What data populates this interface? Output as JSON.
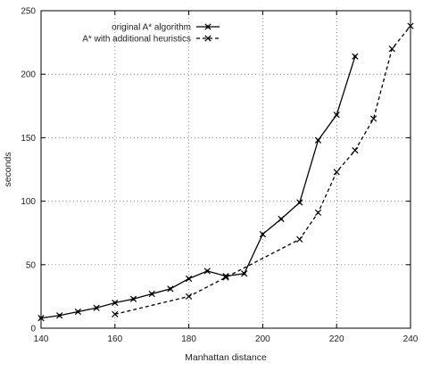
{
  "chart_data": {
    "type": "line",
    "title": "",
    "xlabel": "Manhattan distance",
    "ylabel": "seconds",
    "xlim": [
      140,
      240
    ],
    "ylim": [
      0,
      250
    ],
    "xticks": [
      140,
      160,
      180,
      200,
      220,
      240
    ],
    "yticks": [
      0,
      50,
      100,
      150,
      200,
      250
    ],
    "grid": "dotted",
    "legend_position": "top-right",
    "series": [
      {
        "name": "original A* algorithm",
        "line_style": "solid",
        "marker": "filled-x",
        "color": "#000000",
        "x": [
          140,
          145,
          150,
          155,
          160,
          165,
          170,
          175,
          180,
          185,
          190,
          195,
          200,
          205,
          210,
          215,
          220,
          225
        ],
        "y": [
          8,
          10,
          13,
          16,
          20,
          23,
          27,
          31,
          39,
          45,
          41,
          43,
          74,
          86,
          99,
          148,
          168,
          214
        ]
      },
      {
        "name": "A* with additional heuristics",
        "line_style": "dashed",
        "marker": "x",
        "color": "#000000",
        "x": [
          160,
          180,
          190,
          210,
          215,
          220,
          225,
          230,
          235,
          240
        ],
        "y": [
          11,
          25,
          40,
          70,
          91,
          123,
          140,
          165,
          220,
          238
        ]
      }
    ]
  }
}
